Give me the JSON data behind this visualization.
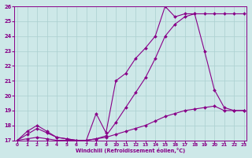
{
  "xlabel": "Windchill (Refroidissement éolien,°C)",
  "bg_color": "#cde8e8",
  "grid_color": "#aacfcf",
  "line_color": "#880088",
  "xlim": [
    0,
    23
  ],
  "ylim": [
    17,
    26
  ],
  "xticks": [
    0,
    1,
    2,
    3,
    4,
    5,
    6,
    7,
    8,
    9,
    10,
    11,
    12,
    13,
    14,
    15,
    16,
    17,
    18,
    19,
    20,
    21,
    22,
    23
  ],
  "yticks": [
    17,
    18,
    19,
    20,
    21,
    22,
    23,
    24,
    25,
    26
  ],
  "line1_x": [
    0,
    1,
    2,
    3,
    4,
    5,
    6,
    7,
    8,
    9,
    10,
    11,
    12,
    13,
    14,
    15,
    16,
    17,
    18,
    19,
    20,
    21,
    22,
    23
  ],
  "line1_y": [
    17.0,
    17.6,
    18.0,
    17.6,
    17.2,
    17.1,
    17.0,
    17.0,
    18.8,
    17.5,
    21.0,
    21.5,
    22.5,
    23.2,
    24.0,
    26.0,
    25.3,
    25.5,
    25.5,
    23.0,
    20.4,
    19.2,
    19.0,
    19.0
  ],
  "line2_x": [
    0,
    1,
    2,
    3,
    4,
    5,
    6,
    7,
    8,
    9,
    10,
    11,
    12,
    13,
    14,
    15,
    16,
    17,
    18,
    19,
    20,
    21,
    22,
    23
  ],
  "line2_y": [
    17.0,
    17.4,
    17.8,
    17.5,
    17.2,
    17.1,
    17.0,
    17.0,
    17.1,
    17.3,
    18.2,
    19.2,
    20.2,
    21.2,
    22.5,
    24.0,
    24.8,
    25.3,
    25.5,
    25.5,
    25.5,
    25.5,
    25.5,
    25.5
  ],
  "line3_x": [
    0,
    1,
    2,
    3,
    4,
    5,
    6,
    7,
    8,
    9,
    10,
    11,
    12,
    13,
    14,
    15,
    16,
    17,
    18,
    19,
    20,
    21,
    22,
    23
  ],
  "line3_y": [
    17.0,
    17.1,
    17.2,
    17.1,
    17.0,
    17.0,
    17.0,
    17.0,
    17.1,
    17.2,
    17.4,
    17.6,
    17.8,
    18.0,
    18.3,
    18.6,
    18.8,
    19.0,
    19.1,
    19.2,
    19.3,
    19.0,
    19.0,
    19.0
  ]
}
